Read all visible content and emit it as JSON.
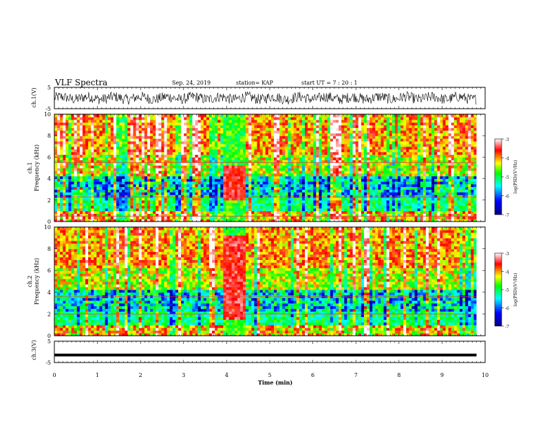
{
  "header": {
    "title": "VLF Spectra",
    "date": "Sep. 24, 2019",
    "station": "station= KAP",
    "start_ut": "start  UT  =   7 : 20 : 1"
  },
  "chart_data": [
    {
      "type": "line",
      "panel": "ch1-waveform",
      "ylabel": "ch.1(V)",
      "yticks": [
        "5",
        "-5"
      ],
      "ylim": [
        -5,
        5
      ]
    },
    {
      "type": "heatmap",
      "panel": "ch1-spectrogram",
      "ylabel_channel": "ch.1",
      "ylabel": "Frequency  (kHz)",
      "yticks": [
        "0",
        "2",
        "4",
        "6",
        "8",
        "10"
      ],
      "ylim": [
        0,
        10
      ],
      "colorbar": {
        "ticks": [
          "-3",
          "-4",
          "-5",
          "-6",
          "-7"
        ],
        "label": "log(PSD)(V²/Hz)",
        "range": [
          -7,
          -3
        ]
      },
      "features": [
        {
          "kind": "burst",
          "t_start": 3.9,
          "t_end": 4.4,
          "f_low": 2,
          "f_high": 5
        },
        {
          "kind": "line",
          "freq": 5.5
        },
        {
          "kind": "line",
          "freq": 2.3
        },
        {
          "kind": "line",
          "freq": 0.5
        }
      ]
    },
    {
      "type": "heatmap",
      "panel": "ch2-spectrogram",
      "ylabel_channel": "ch.2",
      "ylabel": "Frequency  (kHz)",
      "yticks": [
        "0",
        "2",
        "4",
        "6",
        "8",
        "10"
      ],
      "ylim": [
        0,
        10
      ],
      "colorbar": {
        "ticks": [
          "-3",
          "-4",
          "-5",
          "-6",
          "-7"
        ],
        "label": "log(PSD)(V²/Hz)",
        "range": [
          -7,
          -3
        ]
      },
      "features": [
        {
          "kind": "burst",
          "t_start": 3.9,
          "t_end": 4.4,
          "f_low": 1.5,
          "f_high": 9
        },
        {
          "kind": "line",
          "freq": 3.6
        },
        {
          "kind": "line",
          "freq": 2.0
        }
      ]
    },
    {
      "type": "line",
      "panel": "ch3-waveform",
      "ylabel": "ch.3(V)",
      "yticks": [
        "5",
        "-5"
      ],
      "ylim": [
        -5,
        5
      ],
      "level": -1.5
    }
  ],
  "xaxis": {
    "label": "Time  (min)",
    "ticks": [
      "0",
      "1",
      "2",
      "3",
      "4",
      "5",
      "6",
      "7",
      "8",
      "9",
      "10"
    ],
    "xlim": [
      0,
      10
    ],
    "data_end": 9.8
  },
  "colors": {
    "axis": "#000000",
    "colormap": [
      "#000080",
      "#0000ff",
      "#00ffff",
      "#00ff00",
      "#ffff00",
      "#ff0000",
      "#ffffff"
    ]
  }
}
